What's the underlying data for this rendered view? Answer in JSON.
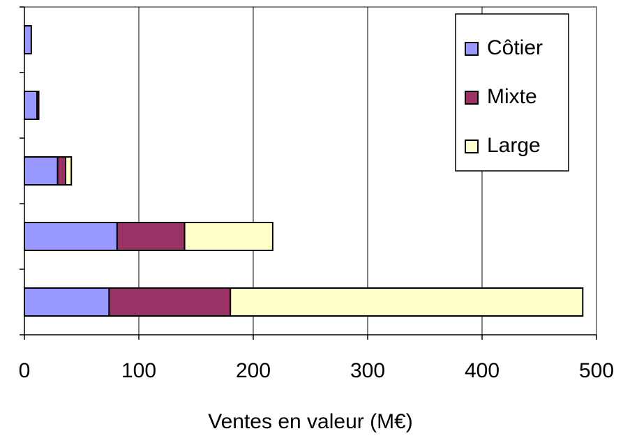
{
  "chart_data": {
    "type": "stacked-bar-horizontal",
    "categories": [
      null,
      null,
      null,
      null,
      null
    ],
    "series": [
      {
        "name": "Côtier",
        "color": "#9999ff",
        "values": [
          6,
          11,
          29,
          81,
          74
        ]
      },
      {
        "name": "Mixte",
        "color": "#993366",
        "values": [
          0,
          1.5,
          7,
          59,
          106
        ]
      },
      {
        "name": "Large",
        "color": "#ffffcc",
        "values": [
          0,
          0,
          5,
          77,
          308
        ]
      }
    ],
    "xlabel": "Ventes en valeur (M€)",
    "xlim": [
      0,
      500
    ],
    "xticks": [
      0,
      100,
      200,
      300,
      400,
      500
    ],
    "grid": true,
    "legend": "top-right"
  }
}
